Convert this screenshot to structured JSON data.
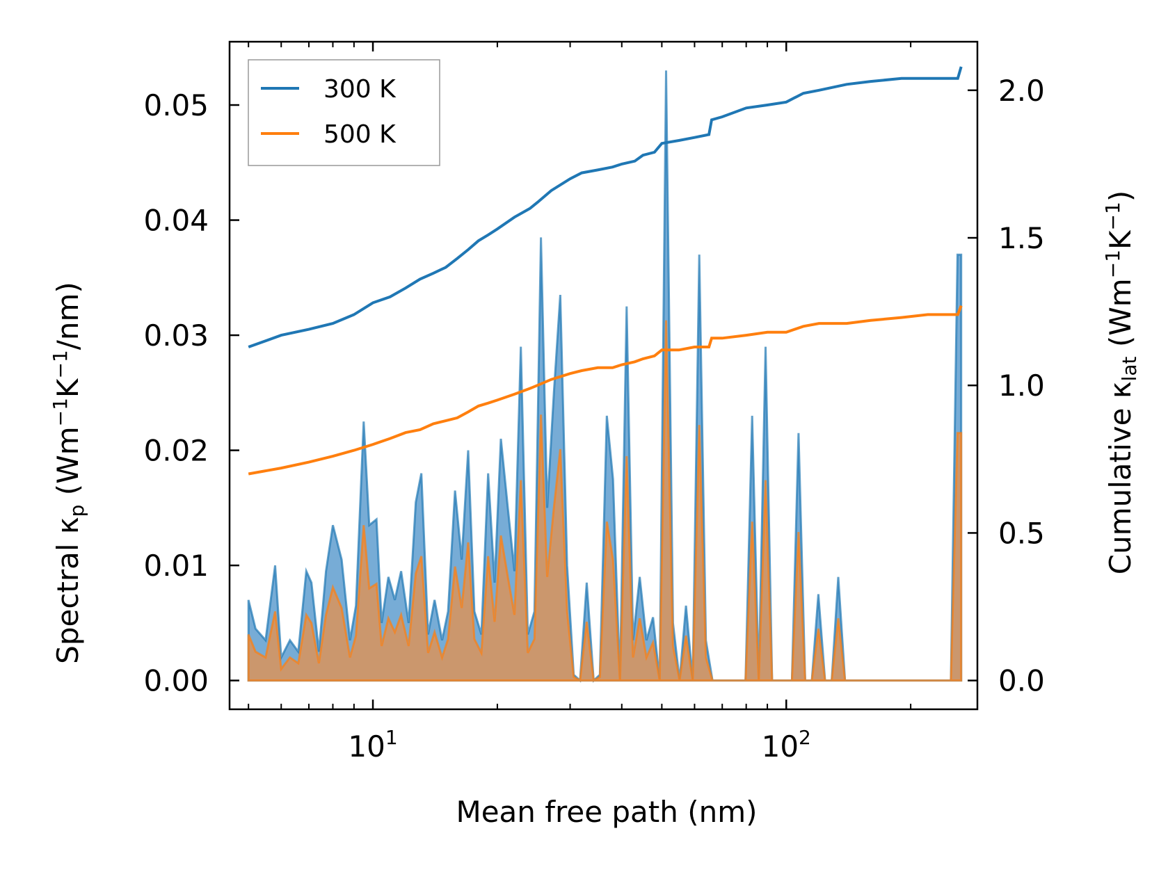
{
  "chart_data": {
    "type": "line",
    "xlabel": "Mean free path (nm)",
    "xscale": "log",
    "xlim": [
      4.5,
      290
    ],
    "ylabel_left": {
      "text": "Spectral κ",
      "sub": "p",
      "units": "(Wm",
      "units_sup": "−1",
      "units_mid": "K",
      "units_sup2": "−1",
      "units_end": "/nm)"
    },
    "ylabel_right": {
      "text": "Cumulative κ",
      "sub": "lat",
      "units": "(Wm",
      "units_sup": "−1",
      "units_mid": "K",
      "units_sup2": "−1",
      "units_end": ")"
    },
    "ylim_left": [
      -0.0025,
      0.0555
    ],
    "ylim_right": [
      -0.0975,
      2.1645
    ],
    "yticks_left": [
      0.0,
      0.01,
      0.02,
      0.03,
      0.04,
      0.05
    ],
    "yticks_left_labels": [
      "0.00",
      "0.01",
      "0.02",
      "0.03",
      "0.04",
      "0.05"
    ],
    "yticks_right": [
      0.0,
      0.5,
      1.0,
      1.5,
      2.0
    ],
    "yticks_right_labels": [
      "0.0",
      "0.5",
      "1.0",
      "1.5",
      "2.0"
    ],
    "xticks_major": [
      10,
      100
    ],
    "xticks_major_labels": [
      {
        "base": "10",
        "exp": "1"
      },
      {
        "base": "10",
        "exp": "2"
      }
    ],
    "legend": {
      "placement": "top-left",
      "entries": [
        "300 K",
        "500 K"
      ]
    },
    "colors": {
      "300 K": "#1f77b4",
      "500 K": "#ff7f0e",
      "fill_300": "#4a90c8",
      "fill_500": "#d9935a"
    },
    "series": [
      {
        "name": "300 K",
        "axis": "right",
        "x": [
          5,
          6,
          7,
          8,
          9,
          10,
          11,
          12,
          13,
          14,
          15,
          16,
          17,
          18,
          19,
          20,
          22,
          24,
          25,
          27,
          30,
          32,
          35,
          38,
          40,
          43,
          45,
          48,
          50,
          55,
          60,
          65,
          66,
          70,
          80,
          90,
          100,
          110,
          120,
          140,
          160,
          190,
          220,
          260,
          265
        ],
        "y": [
          1.13,
          1.17,
          1.19,
          1.21,
          1.24,
          1.28,
          1.3,
          1.33,
          1.36,
          1.38,
          1.4,
          1.43,
          1.46,
          1.49,
          1.51,
          1.53,
          1.57,
          1.6,
          1.62,
          1.66,
          1.7,
          1.72,
          1.73,
          1.74,
          1.75,
          1.76,
          1.78,
          1.79,
          1.82,
          1.83,
          1.84,
          1.85,
          1.9,
          1.91,
          1.94,
          1.95,
          1.96,
          1.99,
          2.0,
          2.02,
          2.03,
          2.04,
          2.04,
          2.04,
          2.08
        ]
      },
      {
        "name": "500 K",
        "axis": "right",
        "x": [
          5,
          6,
          7,
          8,
          9,
          10,
          11,
          12,
          13,
          14,
          15,
          16,
          17,
          18,
          19,
          20,
          22,
          24,
          25,
          27,
          30,
          32,
          35,
          38,
          40,
          43,
          45,
          48,
          50,
          55,
          60,
          65,
          66,
          70,
          80,
          90,
          100,
          110,
          120,
          140,
          160,
          190,
          220,
          260,
          265
        ],
        "y": [
          0.7,
          0.72,
          0.74,
          0.76,
          0.78,
          0.8,
          0.82,
          0.84,
          0.85,
          0.87,
          0.88,
          0.89,
          0.91,
          0.93,
          0.94,
          0.95,
          0.97,
          0.99,
          1.0,
          1.02,
          1.04,
          1.05,
          1.06,
          1.06,
          1.07,
          1.08,
          1.09,
          1.1,
          1.12,
          1.12,
          1.13,
          1.13,
          1.16,
          1.16,
          1.17,
          1.18,
          1.18,
          1.2,
          1.21,
          1.21,
          1.22,
          1.23,
          1.24,
          1.24,
          1.27
        ]
      }
    ],
    "spectral_series": [
      {
        "name": "300 K spectral",
        "axis": "left",
        "x": [
          5,
          5.2,
          5.5,
          5.8,
          6.0,
          6.3,
          6.6,
          6.9,
          7.1,
          7.4,
          7.7,
          8.0,
          8.4,
          8.8,
          9.1,
          9.5,
          9.8,
          10.2,
          10.5,
          10.9,
          11.3,
          11.7,
          12.2,
          12.7,
          13.1,
          13.6,
          14.1,
          14.7,
          15.2,
          15.8,
          16.4,
          17.0,
          17.6,
          18.3,
          19.0,
          19.7,
          20.4,
          21.2,
          22.0,
          22.8,
          23.7,
          24.6,
          25.5,
          26.4,
          27.4,
          28.4,
          29.5,
          30.6,
          31.7,
          32.9,
          34.2,
          35.4,
          36.8,
          38.1,
          39.6,
          41.1,
          42.6,
          44.2,
          45.9,
          47.6,
          49.4,
          51.2,
          53.2,
          55.2,
          57.2,
          59.4,
          61.6,
          63.9,
          66.3,
          68.8,
          71.4,
          74.1,
          76.8,
          79.7,
          82.7,
          85.8,
          89.1,
          92.4,
          95.9,
          99.5,
          103.2,
          107.1,
          111.1,
          115.3,
          119.6,
          124.1,
          128.8,
          133.6,
          138.7,
          143.9,
          149.3,
          154.9,
          160.7,
          166.8,
          173.0,
          179.5,
          186.3,
          193.3,
          200.5,
          208.1,
          215.9,
          224.0,
          232.4,
          241.2,
          250.2,
          259.6,
          265
        ],
        "y": [
          0.007,
          0.0045,
          0.0035,
          0.01,
          0.002,
          0.0035,
          0.0025,
          0.0095,
          0.0085,
          0.0025,
          0.0095,
          0.0135,
          0.0105,
          0.0035,
          0.0065,
          0.0225,
          0.0135,
          0.014,
          0.005,
          0.009,
          0.007,
          0.0095,
          0.005,
          0.0155,
          0.018,
          0.004,
          0.007,
          0.0035,
          0.006,
          0.0165,
          0.0105,
          0.02,
          0.006,
          0.004,
          0.018,
          0.0085,
          0.021,
          0.015,
          0.0095,
          0.029,
          0.004,
          0.006,
          0.0385,
          0.015,
          0.025,
          0.0335,
          0.01,
          0.0005,
          0.0,
          0.0085,
          0.0,
          0.0005,
          0.023,
          0.0175,
          0.0,
          0.0325,
          0.0035,
          0.009,
          0.0035,
          0.0055,
          0.0,
          0.053,
          0.005,
          0.0,
          0.0065,
          0.0,
          0.037,
          0.0035,
          0.0,
          0.0,
          0.0,
          0.0,
          0.0,
          0.0,
          0.023,
          0.0,
          0.029,
          0.0,
          0.0,
          0.0,
          0.0,
          0.0215,
          0.0,
          0.0,
          0.0075,
          0.0,
          0.0,
          0.009,
          0.0,
          0.0,
          0.0,
          0.0,
          0.0,
          0.0,
          0.0,
          0.0,
          0.0,
          0.0,
          0.0,
          0.0,
          0.0,
          0.0,
          0.0,
          0.0,
          0.0,
          0.037,
          0.037
        ]
      },
      {
        "name": "500 K spectral",
        "axis": "left",
        "x": [
          5,
          5.2,
          5.5,
          5.8,
          6.0,
          6.3,
          6.6,
          6.9,
          7.1,
          7.4,
          7.7,
          8.0,
          8.4,
          8.8,
          9.1,
          9.5,
          9.8,
          10.2,
          10.5,
          10.9,
          11.3,
          11.7,
          12.2,
          12.7,
          13.1,
          13.6,
          14.1,
          14.7,
          15.2,
          15.8,
          16.4,
          17.0,
          17.6,
          18.3,
          19.0,
          19.7,
          20.4,
          21.2,
          22.0,
          22.8,
          23.7,
          24.6,
          25.5,
          26.4,
          27.4,
          28.4,
          29.5,
          30.6,
          31.7,
          32.9,
          34.2,
          35.4,
          36.8,
          38.1,
          39.6,
          41.1,
          42.6,
          44.2,
          45.9,
          47.6,
          49.4,
          51.2,
          53.2,
          55.2,
          57.2,
          59.4,
          61.6,
          63.9,
          66.3,
          68.8,
          71.4,
          74.1,
          76.8,
          79.7,
          82.7,
          85.8,
          89.1,
          92.4,
          95.9,
          99.5,
          103.2,
          107.1,
          111.1,
          115.3,
          119.6,
          124.1,
          128.8,
          133.6,
          138.7,
          143.9,
          149.3,
          154.9,
          160.7,
          166.8,
          173.0,
          179.5,
          186.3,
          193.3,
          200.5,
          208.1,
          215.9,
          224.0,
          232.4,
          241.2,
          250.2,
          259.6,
          265
        ],
        "y": [
          0.004,
          0.0025,
          0.002,
          0.006,
          0.001,
          0.002,
          0.0015,
          0.0057,
          0.005,
          0.0015,
          0.0057,
          0.0081,
          0.0063,
          0.002,
          0.0039,
          0.0135,
          0.008,
          0.0084,
          0.003,
          0.0054,
          0.0042,
          0.0057,
          0.003,
          0.0093,
          0.0108,
          0.0024,
          0.0042,
          0.002,
          0.0036,
          0.0099,
          0.0063,
          0.012,
          0.0036,
          0.0024,
          0.0108,
          0.0051,
          0.0126,
          0.009,
          0.0057,
          0.0174,
          0.0024,
          0.0036,
          0.0231,
          0.009,
          0.015,
          0.0201,
          0.006,
          0.0003,
          0.0,
          0.0051,
          0.0,
          0.0003,
          0.0138,
          0.0105,
          0.0,
          0.0195,
          0.002,
          0.0054,
          0.002,
          0.0033,
          0.0,
          0.0313,
          0.003,
          0.0,
          0.0039,
          0.0,
          0.0222,
          0.002,
          0.0,
          0.0,
          0.0,
          0.0,
          0.0,
          0.0,
          0.0138,
          0.0,
          0.0174,
          0.0,
          0.0,
          0.0,
          0.0,
          0.0129,
          0.0,
          0.0,
          0.0045,
          0.0,
          0.0,
          0.0054,
          0.0,
          0.0,
          0.0,
          0.0,
          0.0,
          0.0,
          0.0,
          0.0,
          0.0,
          0.0,
          0.0,
          0.0,
          0.0,
          0.0,
          0.0,
          0.0,
          0.0,
          0.0215,
          0.0215
        ]
      }
    ]
  }
}
